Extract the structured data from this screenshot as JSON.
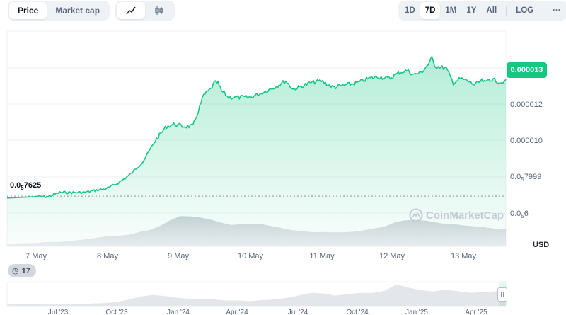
{
  "toolbar": {
    "metric_tabs": [
      "Price",
      "Market cap"
    ],
    "active_metric": "Price",
    "chart_types": [
      {
        "name": "line-chart-icon",
        "active": true
      },
      {
        "name": "candlestick-icon",
        "active": false
      }
    ],
    "ranges": [
      "1D",
      "7D",
      "1M",
      "1Y",
      "All"
    ],
    "active_range": "7D",
    "log_label": "LOG",
    "more_label": "···"
  },
  "chart": {
    "current_price_label": "0.000013",
    "reference_label_prefix": "0.0",
    "reference_label_sub": "5",
    "reference_label_suffix": "7625",
    "y_ticks": [
      {
        "text": "0.000012"
      },
      {
        "text": "0.000010"
      },
      {
        "prefix": "0.0",
        "sub": "5",
        "suffix": "7999"
      },
      {
        "prefix": "0.0",
        "sub": "5",
        "suffix": "6"
      }
    ],
    "currency_label": "USD",
    "watermark": "CoinMarketCap",
    "events_count": "17",
    "x_ticks": [
      "7 May",
      "8 May",
      "9 May",
      "10 May",
      "11 May",
      "12 May",
      "13 May"
    ],
    "navigator_ticks": [
      "Jul '23",
      "Oct '23",
      "Jan '24",
      "Apr '24",
      "Jul '24",
      "Oct '24",
      "Jan '25",
      "Apr '25"
    ],
    "colors": {
      "line": "#16c784",
      "tag": "#16c784",
      "text": "#58667e"
    }
  },
  "chart_data": {
    "type": "area",
    "x_range": [
      "7 May",
      "13 May"
    ],
    "ylim": [
      5.2e-06,
      1.56e-05
    ],
    "reference_value": 7.625e-06,
    "series": [
      {
        "x": [
          0,
          0.17,
          0.33,
          0.5,
          0.67,
          0.83,
          1.0,
          1.17,
          1.33,
          1.5,
          1.67,
          1.83,
          1.95,
          2.05,
          2.2,
          2.35,
          2.45,
          2.5,
          2.55,
          2.6,
          2.7,
          2.85,
          3.0,
          3.15,
          3.35,
          3.5,
          3.6,
          3.7,
          3.85,
          4.0,
          4.15,
          4.2,
          4.35,
          4.5,
          4.65,
          4.8,
          4.95,
          5.0,
          5.1,
          5.2,
          5.3,
          5.4,
          5.5,
          5.55,
          5.6,
          5.75,
          5.85,
          5.95,
          6.05,
          6.15,
          6.25,
          6.3,
          6.35,
          6.45,
          6.55
        ],
        "values": [
          7.6e-06,
          7.6e-06,
          7.8e-06,
          7.8e-06,
          7.8e-06,
          7.9e-06,
          8e-06,
          8.3e-06,
          8.7e-06,
          9.3e-06,
          1.03e-05,
          1.1e-05,
          1.11e-05,
          1.1e-05,
          1.1e-05,
          1.25e-05,
          1.28e-05,
          1.31e-05,
          1.31e-05,
          1.27e-05,
          1.24e-05,
          1.24e-05,
          1.24e-05,
          1.26e-05,
          1.29e-05,
          1.32e-05,
          1.28e-05,
          1.29e-05,
          1.31e-05,
          1.32e-05,
          1.29e-05,
          1.29e-05,
          1.3e-05,
          1.31e-05,
          1.33e-05,
          1.34e-05,
          1.33e-05,
          1.34e-05,
          1.36e-05,
          1.37e-05,
          1.35e-05,
          1.36e-05,
          1.4e-05,
          1.43e-05,
          1.39e-05,
          1.38e-05,
          1.31e-05,
          1.33e-05,
          1.32e-05,
          1.3e-05,
          1.32e-05,
          1.31e-05,
          1.33e-05,
          1.32e-05,
          1.31e-05
        ]
      }
    ],
    "volume": [
      2,
      2.5,
      3,
      3.5,
      4,
      4.5,
      5,
      6,
      8,
      9,
      10,
      11,
      12,
      14,
      16,
      20,
      26,
      30,
      30,
      29,
      27,
      24,
      22,
      22,
      22,
      22,
      20,
      18,
      16,
      15,
      14,
      14,
      14,
      14,
      15,
      16,
      18,
      20,
      24,
      26,
      27,
      26,
      24,
      23,
      22,
      21,
      20,
      19,
      18,
      17
    ],
    "navigator": [
      1,
      1,
      1,
      1.2,
      1.5,
      1.5,
      1.2,
      1.5,
      2,
      3,
      4.5,
      7,
      8,
      7,
      6,
      5.5,
      5,
      4.5,
      4,
      4,
      3.5,
      4,
      5,
      6,
      8,
      10,
      9,
      8,
      9,
      10,
      9.5,
      11,
      16,
      14,
      12,
      11,
      12,
      11,
      10,
      10,
      11,
      12
    ]
  }
}
